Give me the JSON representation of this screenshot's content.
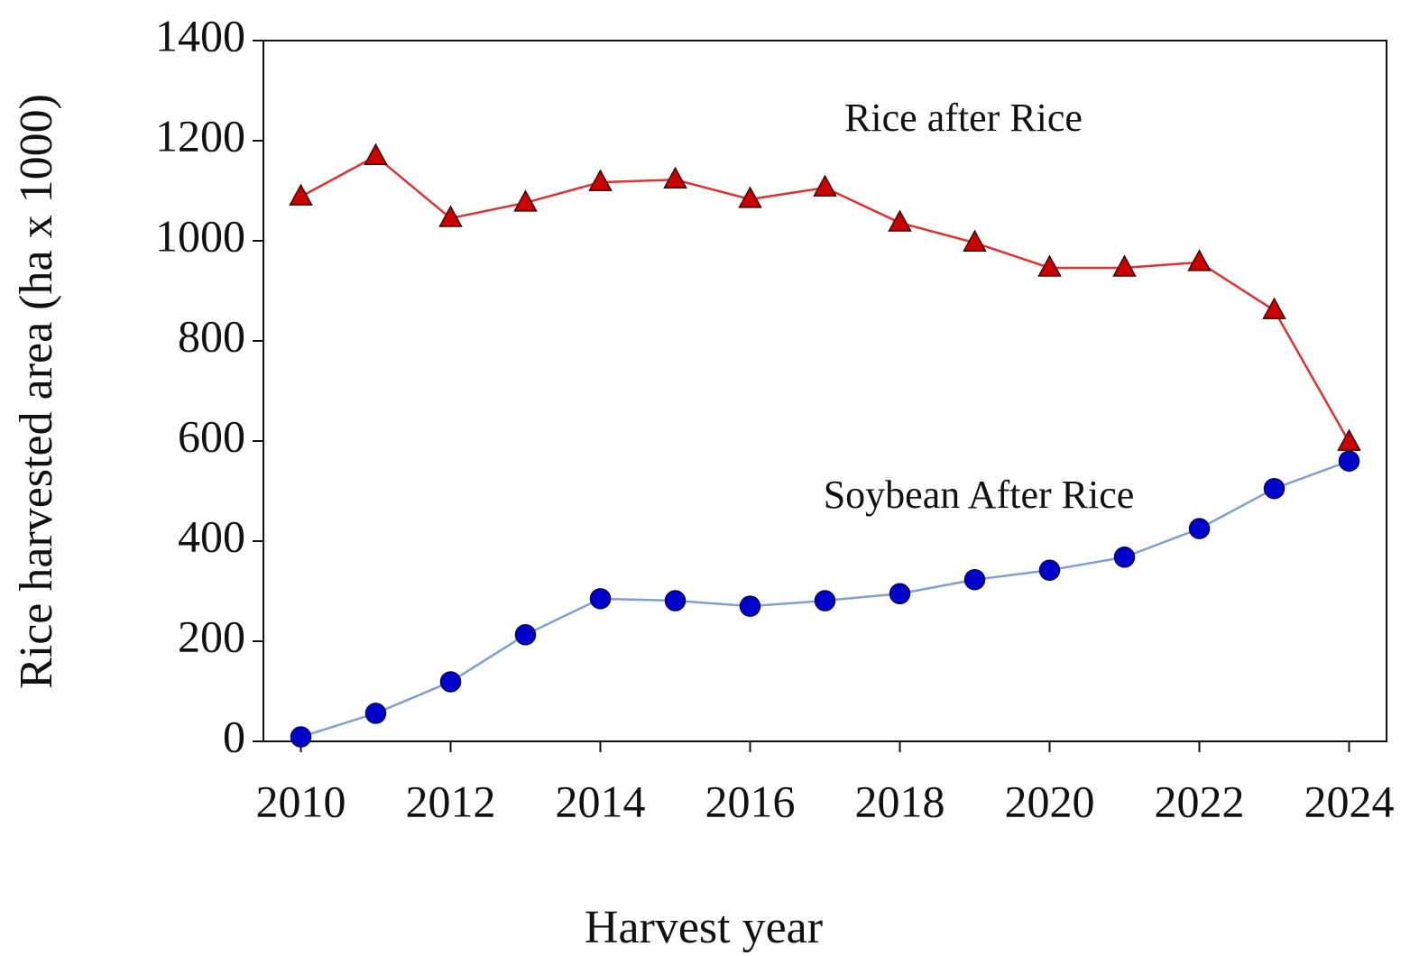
{
  "chart_data": {
    "type": "line",
    "x_label": "Harvest year",
    "y_label": "Rice harvested area (ha x 1000)",
    "x": [
      2010,
      2011,
      2012,
      2013,
      2014,
      2015,
      2016,
      2017,
      2018,
      2019,
      2020,
      2021,
      2022,
      2023,
      2024
    ],
    "series": [
      {
        "name": "Rice after Rice",
        "color": "#cc0000",
        "line_color": "#e03030",
        "marker": "triangle",
        "values": [
          1088,
          1169,
          1045,
          1076,
          1117,
          1122,
          1083,
          1106,
          1036,
          996,
          946,
          946,
          957,
          861,
          598
        ]
      },
      {
        "name": "Soybean After Rice",
        "color": "#0000cc",
        "line_color": "#7f9fd0",
        "marker": "circle",
        "values": [
          9,
          56,
          119,
          213,
          285,
          281,
          270,
          281,
          295,
          323,
          342,
          368,
          425,
          505,
          560
        ]
      }
    ],
    "xlim": [
      2009.5,
      2024.5
    ],
    "xticks": [
      2010,
      2012,
      2014,
      2016,
      2018,
      2020,
      2022,
      2024
    ],
    "ylim": [
      0,
      1400
    ],
    "yticks": [
      0,
      200,
      400,
      600,
      800,
      1000,
      1200,
      1400
    ],
    "grid": false
  }
}
